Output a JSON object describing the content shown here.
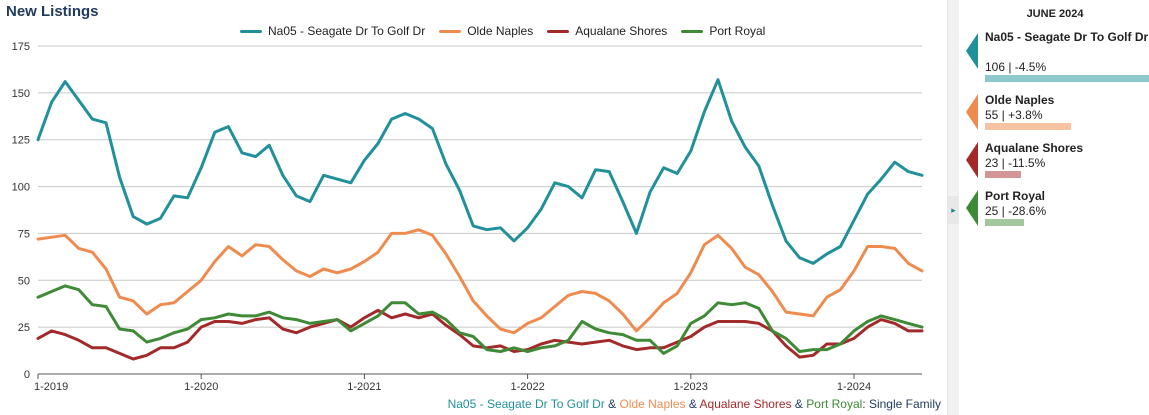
{
  "title": "New Listings",
  "legend": [
    {
      "name": "Na05 - Seagate Dr To Golf Dr",
      "color": "#20909a"
    },
    {
      "name": "Olde Naples",
      "color": "#ee8c50"
    },
    {
      "name": "Aqualane Shores",
      "color": "#a22a2a"
    },
    {
      "name": "Port Royal",
      "color": "#3f8a36"
    }
  ],
  "subtitle": {
    "parts": [
      "Na05 - Seagate Dr To Golf Dr",
      " & ",
      "Olde Naples",
      " & ",
      "Aqualane Shores",
      " & ",
      "Port Royal",
      ": Single Family"
    ]
  },
  "panel": {
    "date": "JUNE 2024",
    "tab_icon": "▸",
    "entries": [
      {
        "name": "Na05 - Seagate Dr To Golf Dr",
        "value_text": "106 | -4.5%",
        "value": 106,
        "color": "#20909a",
        "bar_color": "#8cc8cc"
      },
      {
        "name": "Olde Naples",
        "value_text": "55 | +3.8%",
        "value": 55,
        "color": "#ee8c50",
        "bar_color": "#f6c3a2"
      },
      {
        "name": "Aqualane Shores",
        "value_text": "23 | -11.5%",
        "value": 23,
        "color": "#a22a2a",
        "bar_color": "#d39696"
      },
      {
        "name": "Port Royal",
        "value_text": "25 | -28.6%",
        "value": 25,
        "color": "#3f8a36",
        "bar_color": "#a3c79d"
      }
    ]
  },
  "chart_data": {
    "type": "line",
    "title": "New Listings",
    "xlabel": "",
    "ylabel": "",
    "ylim": [
      0,
      175
    ],
    "yticks": [
      0,
      25,
      50,
      75,
      100,
      125,
      150,
      175
    ],
    "x_start": "1-2019",
    "x_tick_labels": [
      "1-2019",
      "1-2020",
      "1-2021",
      "1-2022",
      "1-2023",
      "1-2024"
    ],
    "x_tick_indices": [
      0,
      12,
      24,
      36,
      48,
      60
    ],
    "grid": true,
    "legend_position": "top",
    "series": [
      {
        "name": "Na05 - Seagate Dr To Golf Dr",
        "color": "#20909a",
        "values": [
          125,
          145,
          156,
          146,
          136,
          134,
          105,
          84,
          80,
          83,
          95,
          94,
          110,
          129,
          132,
          118,
          116,
          122,
          106,
          95,
          92,
          106,
          104,
          102,
          114,
          123,
          136,
          139,
          136,
          131,
          112,
          98,
          79,
          77,
          78,
          71,
          78,
          88,
          102,
          100,
          94,
          109,
          108,
          92,
          75,
          97,
          110,
          107,
          119,
          140,
          157,
          135,
          121,
          111,
          90,
          71,
          62,
          59,
          64,
          68,
          82,
          96,
          104,
          113,
          108,
          106
        ]
      },
      {
        "name": "Olde Naples",
        "color": "#ee8c50",
        "values": [
          72,
          73,
          74,
          67,
          65,
          56,
          41,
          39,
          32,
          37,
          38,
          44,
          50,
          60,
          68,
          63,
          69,
          68,
          61,
          55,
          52,
          56,
          54,
          56,
          60,
          65,
          75,
          75,
          77,
          74,
          64,
          52,
          39,
          31,
          24,
          22,
          27,
          30,
          36,
          42,
          44,
          43,
          39,
          32,
          23,
          30,
          38,
          43,
          54,
          69,
          74,
          67,
          57,
          53,
          44,
          33,
          32,
          31,
          41,
          45,
          55,
          68,
          68,
          67,
          59,
          55
        ]
      },
      {
        "name": "Aqualane Shores",
        "color": "#a22a2a",
        "values": [
          19,
          23,
          21,
          18,
          14,
          14,
          11,
          8,
          10,
          14,
          14,
          17,
          25,
          28,
          28,
          27,
          29,
          30,
          24,
          22,
          25,
          27,
          29,
          25,
          30,
          34,
          30,
          32,
          30,
          32,
          26,
          21,
          15,
          14,
          15,
          12,
          13,
          16,
          18,
          17,
          16,
          17,
          18,
          15,
          13,
          14,
          14,
          17,
          20,
          25,
          28,
          28,
          28,
          27,
          23,
          15,
          9,
          10,
          16,
          16,
          19,
          25,
          29,
          27,
          23,
          23
        ]
      },
      {
        "name": "Port Royal",
        "color": "#3f8a36",
        "values": [
          41,
          44,
          47,
          45,
          37,
          36,
          24,
          23,
          17,
          19,
          22,
          24,
          29,
          30,
          32,
          31,
          31,
          33,
          30,
          29,
          27,
          28,
          29,
          23,
          27,
          31,
          38,
          38,
          32,
          33,
          29,
          22,
          20,
          13,
          12,
          14,
          12,
          14,
          15,
          18,
          28,
          24,
          22,
          21,
          18,
          18,
          11,
          15,
          27,
          31,
          38,
          37,
          38,
          35,
          23,
          19,
          12,
          13,
          13,
          16,
          23,
          28,
          31,
          29,
          27,
          25
        ]
      }
    ]
  }
}
